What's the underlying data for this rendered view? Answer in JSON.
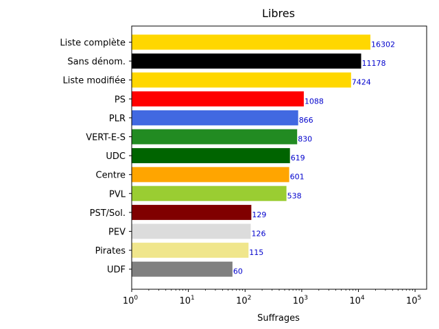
{
  "chart_data": {
    "type": "bar",
    "orientation": "horizontal",
    "title": "Libres",
    "xlabel": "Suffrages",
    "ylabel": "",
    "xscale": "log",
    "xlim": [
      1,
      160000
    ],
    "grid": false,
    "categories": [
      "Liste complète",
      "Sans dénom.",
      "Liste modifiée",
      "PS",
      "PLR",
      "VERT-E-S",
      "UDC",
      "Centre",
      "PVL",
      "PST/Sol.",
      "PEV",
      "Pirates",
      "UDF"
    ],
    "values": [
      16302,
      11178,
      7424,
      1088,
      866,
      830,
      619,
      601,
      538,
      129,
      126,
      115,
      60
    ],
    "data_labels": [
      "16302",
      "11178",
      "7424",
      "1088",
      "866",
      "830",
      "619",
      "601",
      "538",
      "129",
      "126",
      "115",
      "60"
    ],
    "colors": [
      "#ffd700",
      "#000000",
      "#ffd700",
      "#ff0000",
      "#4169e1",
      "#228b22",
      "#006400",
      "#ffa500",
      "#9acd32",
      "#800000",
      "#dcdcdc",
      "#f0e68c",
      "#808080"
    ],
    "x_ticks": [
      {
        "value": 1,
        "base": "10",
        "exp": "0"
      },
      {
        "value": 10,
        "base": "10",
        "exp": "1"
      },
      {
        "value": 100,
        "base": "10",
        "exp": "2"
      },
      {
        "value": 1000,
        "base": "10",
        "exp": "3"
      },
      {
        "value": 10000,
        "base": "10",
        "exp": "4"
      },
      {
        "value": 100000,
        "base": "10",
        "exp": "5"
      }
    ],
    "label_color": "#0000cc"
  }
}
